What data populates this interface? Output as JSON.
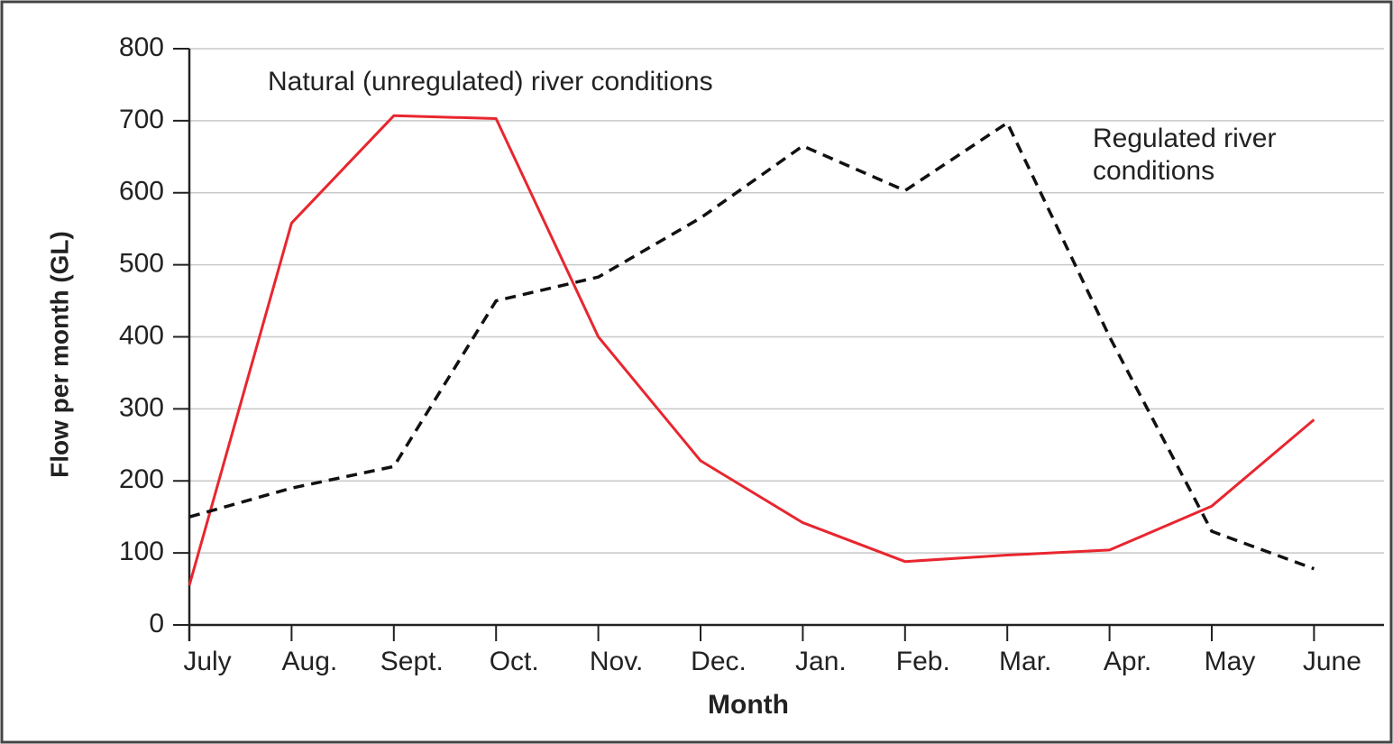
{
  "chart_data": {
    "type": "line",
    "x_label": "Month",
    "y_label": "Flow per month (GL)",
    "categories": [
      "July",
      "Aug.",
      "Sept.",
      "Oct.",
      "Nov.",
      "Dec.",
      "Jan.",
      "Feb.",
      "Mar.",
      "Apr.",
      "May",
      "June"
    ],
    "series": [
      {
        "name": "Natural (unregulated) river conditions",
        "color": "#e8262f",
        "dashed": false,
        "values": [
          55,
          558,
          707,
          703,
          400,
          228,
          142,
          88,
          97,
          104,
          165,
          285
        ]
      },
      {
        "name": "Regulated river conditions",
        "color": "#111111",
        "dashed": true,
        "values": [
          150,
          190,
          220,
          450,
          483,
          565,
          665,
          603,
          697,
          400,
          130,
          78
        ]
      }
    ],
    "annotations": [
      {
        "lines": [
          "Natural (unregulated) river conditions"
        ]
      },
      {
        "lines": [
          "Regulated river",
          "conditions"
        ]
      }
    ],
    "ylim": [
      0,
      800
    ],
    "yticks": [
      0,
      100,
      200,
      300,
      400,
      500,
      600,
      700,
      800
    ],
    "grid": true
  }
}
